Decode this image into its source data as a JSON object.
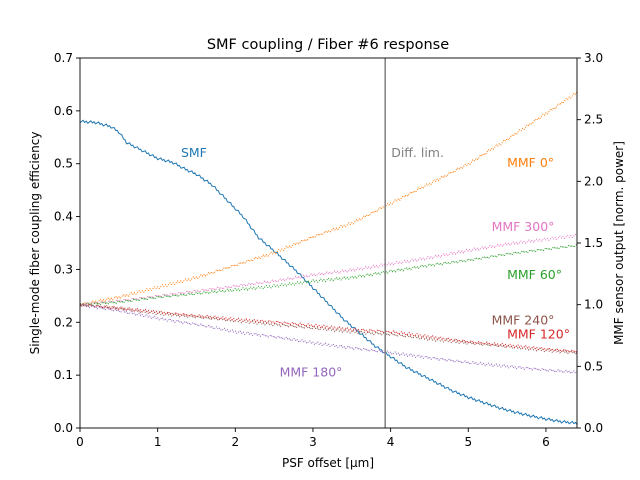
{
  "chart_data": {
    "type": "line",
    "title": "SMF coupling / Fiber #6 response",
    "xlabel": "PSF offset [μm]",
    "ylabel_left": "Single-mode fiber coupling efficiency",
    "ylabel_right": "MMF sensor output [norm. power]",
    "xlim": [
      0,
      6.4
    ],
    "ylim_left": [
      0,
      0.7
    ],
    "ylim_right": [
      0,
      3.0
    ],
    "x_ticks": [
      0,
      1,
      2,
      3,
      4,
      5,
      6
    ],
    "x_tick_labels": [
      "0",
      "1",
      "2",
      "3",
      "4",
      "5",
      "6"
    ],
    "y_left_ticks": [
      0.0,
      0.1,
      0.2,
      0.3,
      0.4,
      0.5,
      0.6,
      0.7
    ],
    "y_left_tick_labels": [
      "0.0",
      "0.1",
      "0.2",
      "0.3",
      "0.4",
      "0.5",
      "0.6",
      "0.7"
    ],
    "y_right_ticks": [
      0.0,
      0.5,
      1.0,
      1.5,
      2.0,
      2.5,
      3.0
    ],
    "y_right_tick_labels": [
      "0.0",
      "0.5",
      "1.0",
      "1.5",
      "2.0",
      "2.5",
      "3.0"
    ],
    "grid": false,
    "vline": {
      "x": 3.93,
      "label": "Diff. lim.",
      "color": "#7f7f7f"
    },
    "series": [
      {
        "name": "SMF",
        "axis": "left",
        "color": "#1f77b4",
        "x": [
          0,
          0.2,
          0.4,
          0.5,
          0.6,
          0.8,
          1.0,
          1.2,
          1.35,
          1.5,
          1.7,
          1.9,
          2.1,
          2.3,
          2.5,
          2.8,
          3.0,
          3.2,
          3.4,
          3.6,
          3.8,
          4.0,
          4.2,
          4.4,
          4.6,
          4.8,
          5.0,
          5.2,
          5.4,
          5.6,
          5.8,
          6.0,
          6.2,
          6.4
        ],
        "y": [
          0.58,
          0.578,
          0.57,
          0.56,
          0.54,
          0.525,
          0.51,
          0.502,
          0.49,
          0.48,
          0.46,
          0.43,
          0.4,
          0.36,
          0.335,
          0.295,
          0.265,
          0.235,
          0.205,
          0.18,
          0.155,
          0.135,
          0.115,
          0.1,
          0.085,
          0.07,
          0.058,
          0.048,
          0.038,
          0.03,
          0.023,
          0.017,
          0.012,
          0.009
        ],
        "label_position": {
          "x": 1.3,
          "y": 0.52
        }
      },
      {
        "name": "MMF 0°",
        "axis": "right",
        "color": "#ff7f0e",
        "x": [
          0,
          0.5,
          1.0,
          1.5,
          2.0,
          2.5,
          3.0,
          3.5,
          4.0,
          4.5,
          5.0,
          5.5,
          6.0,
          6.4
        ],
        "y": [
          1.0,
          1.06,
          1.14,
          1.22,
          1.32,
          1.42,
          1.55,
          1.66,
          1.82,
          1.98,
          2.14,
          2.34,
          2.55,
          2.72
        ],
        "label_position": {
          "x": 5.5,
          "y": 2.15
        }
      },
      {
        "name": "MMF 300°",
        "axis": "right",
        "color": "#e377c2",
        "x": [
          0,
          0.5,
          1.0,
          1.5,
          2.0,
          2.5,
          3.0,
          3.5,
          4.0,
          4.5,
          5.0,
          5.5,
          6.0,
          6.4
        ],
        "y": [
          1.0,
          1.03,
          1.07,
          1.11,
          1.15,
          1.19,
          1.24,
          1.28,
          1.33,
          1.38,
          1.44,
          1.49,
          1.53,
          1.56
        ],
        "label_position": {
          "x": 5.3,
          "y": 1.63
        }
      },
      {
        "name": "MMF 60°",
        "axis": "right",
        "color": "#2ca02c",
        "x": [
          0,
          0.5,
          1.0,
          1.5,
          2.0,
          2.5,
          3.0,
          3.5,
          4.0,
          4.5,
          5.0,
          5.5,
          6.0,
          6.4
        ],
        "y": [
          1.0,
          1.02,
          1.06,
          1.09,
          1.12,
          1.15,
          1.19,
          1.22,
          1.27,
          1.32,
          1.36,
          1.41,
          1.45,
          1.48
        ],
        "label_position": {
          "x": 5.5,
          "y": 1.24
        }
      },
      {
        "name": "MMF 240°",
        "axis": "right",
        "color": "#8c564b",
        "x": [
          0,
          0.5,
          1.0,
          1.5,
          2.0,
          2.5,
          3.0,
          3.5,
          4.0,
          4.5,
          5.0,
          5.5,
          6.0,
          6.4
        ],
        "y": [
          1.0,
          0.97,
          0.93,
          0.9,
          0.87,
          0.84,
          0.81,
          0.78,
          0.76,
          0.72,
          0.69,
          0.66,
          0.63,
          0.61
        ],
        "label_position": {
          "x": 5.3,
          "y": 0.87
        }
      },
      {
        "name": "MMF 120°",
        "axis": "right",
        "color": "#d62728",
        "x": [
          0,
          0.5,
          1.0,
          1.5,
          2.0,
          2.5,
          3.0,
          3.5,
          4.0,
          4.5,
          5.0,
          5.5,
          6.0,
          6.4
        ],
        "y": [
          1.0,
          0.97,
          0.94,
          0.91,
          0.88,
          0.86,
          0.83,
          0.8,
          0.78,
          0.74,
          0.7,
          0.67,
          0.64,
          0.62
        ],
        "label_position": {
          "x": 5.5,
          "y": 0.76
        }
      },
      {
        "name": "MMF 180°",
        "axis": "right",
        "color": "#9467bd",
        "x": [
          0,
          0.5,
          1.0,
          1.5,
          2.0,
          2.5,
          3.0,
          3.5,
          4.0,
          4.5,
          5.0,
          5.5,
          6.0,
          6.4
        ],
        "y": [
          1.0,
          0.95,
          0.89,
          0.84,
          0.78,
          0.74,
          0.69,
          0.65,
          0.61,
          0.57,
          0.53,
          0.5,
          0.47,
          0.45
        ],
        "label_position": {
          "x": 2.57,
          "y": 0.45
        }
      }
    ]
  }
}
